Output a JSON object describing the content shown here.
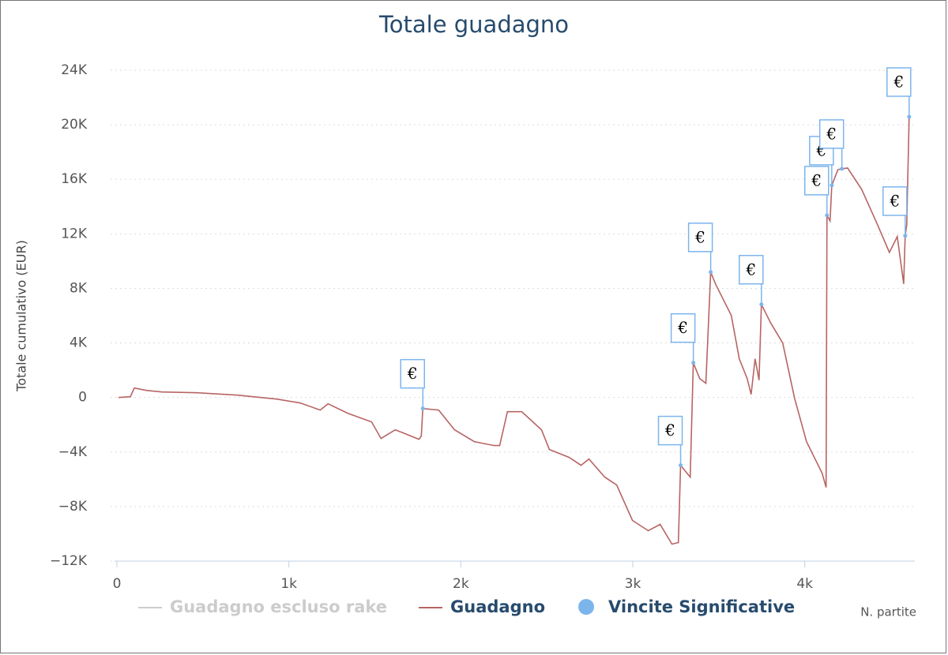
{
  "chart_data": {
    "type": "line",
    "title": "Totale guadagno",
    "ylabel": "Totale cumulativo (EUR)",
    "xlabel": "N. partite",
    "flag_label": "€",
    "xlim": [
      0,
      4640
    ],
    "xticks": [
      0,
      {
        "value": 1000,
        "label": "1k"
      },
      {
        "value": 2000,
        "label": "2k"
      },
      {
        "value": 3000,
        "label": "3k"
      },
      {
        "value": 4000,
        "label": "4k"
      }
    ],
    "ylim": [
      -12000,
      24000
    ],
    "yticks": [
      {
        "value": -12000,
        "label": "−12K"
      },
      {
        "value": -8000,
        "label": "−8K"
      },
      {
        "value": -4000,
        "label": "−4K"
      },
      0,
      {
        "value": 4000,
        "label": "4K"
      },
      {
        "value": 8000,
        "label": "8K"
      },
      {
        "value": 12000,
        "label": "12K"
      },
      {
        "value": 16000,
        "label": "16K"
      },
      {
        "value": 20000,
        "label": "20K"
      },
      {
        "value": 24000,
        "label": "24K"
      }
    ],
    "grid": true,
    "x": [
      9,
      78,
      101,
      170,
      262,
      469,
      699,
      929,
      1067,
      1182,
      1228,
      1343,
      1481,
      1536,
      1619,
      1756,
      1770,
      1779,
      1871,
      1963,
      2078,
      2193,
      2226,
      2271,
      2354,
      2469,
      2515,
      2630,
      2699,
      2745,
      2837,
      2906,
      2998,
      3090,
      3159,
      3228,
      3265,
      3278,
      3334,
      3352,
      3389,
      3425,
      3453,
      3481,
      3527,
      3573,
      3619,
      3665,
      3688,
      3711,
      3734,
      3748,
      3803,
      3872,
      3941,
      4010,
      4101,
      4124,
      4129,
      4147,
      4157,
      4193,
      4216,
      4249,
      4331,
      4423,
      4492,
      4538,
      4575,
      4584,
      4593,
      4607
    ],
    "series": [
      {
        "name": "Guadagno escluso rake",
        "color": "#cccccc",
        "visible": false
      },
      {
        "name": "Guadagno",
        "color": "#b86464",
        "values": [
          0,
          58,
          694,
          520,
          405,
          347,
          173,
          -116,
          -405,
          -925,
          -463,
          -1157,
          -1793,
          -3007,
          -2371,
          -3065,
          -2834,
          -810,
          -925,
          -2371,
          -3238,
          -3528,
          -3528,
          -1041,
          -1041,
          -2371,
          -3817,
          -4395,
          -4973,
          -4511,
          -5841,
          -6419,
          -9021,
          -9773,
          -9311,
          -10756,
          -10641,
          -4973,
          -5841,
          2545,
          1388,
          1041,
          9195,
          8328,
          7171,
          6014,
          2834,
          1388,
          231,
          2834,
          1272,
          6824,
          5436,
          3990,
          -58,
          -3238,
          -5552,
          -6593,
          13359,
          12954,
          15556,
          16713,
          16771,
          16829,
          15267,
          12665,
          10641,
          11797,
          8328,
          11855,
          12665,
          20587
        ]
      },
      {
        "name": "Vincite Significative",
        "color": "#7cb5ec",
        "type": "scatter",
        "x": [
          1779,
          3278,
          3352,
          3453,
          3748,
          4129,
          4157,
          4216,
          4584,
          4607
        ],
        "values": [
          -810,
          -4973,
          2545,
          9195,
          6824,
          13359,
          15556,
          16771,
          11855,
          20587
        ]
      }
    ]
  }
}
